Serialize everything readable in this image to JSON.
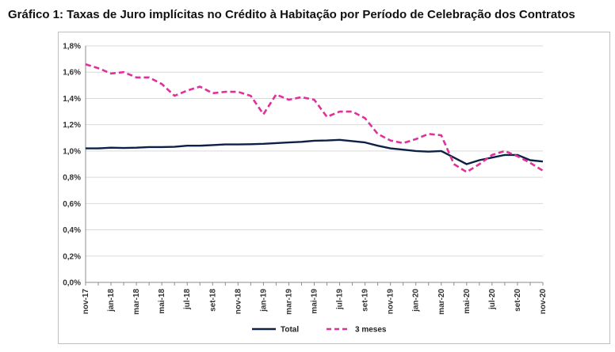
{
  "chart_data": {
    "type": "line",
    "title": "Gráfico 1: Taxas de Juro implícitas no Crédito à Habitação por Período de Celebração dos Contratos",
    "xlabel": "",
    "ylabel": "",
    "ylim": [
      0,
      1.8
    ],
    "y_ticks": [
      "0,0%",
      "0,2%",
      "0,4%",
      "0,6%",
      "0,8%",
      "1,0%",
      "1,2%",
      "1,4%",
      "1,6%",
      "1,8%"
    ],
    "x_ticks": [
      "nov-17",
      "jan-18",
      "mar-18",
      "mai-18",
      "jul-18",
      "set-18",
      "nov-18",
      "jan-19",
      "mar-19",
      "mai-19",
      "jul-19",
      "set-19",
      "nov-19",
      "jan-20",
      "mar-20",
      "mai-20",
      "jul-20",
      "set-20",
      "nov-20"
    ],
    "x": [
      "nov-17",
      "dez-17",
      "jan-18",
      "fev-18",
      "mar-18",
      "abr-18",
      "mai-18",
      "jun-18",
      "jul-18",
      "ago-18",
      "set-18",
      "out-18",
      "nov-18",
      "dez-18",
      "jan-19",
      "fev-19",
      "mar-19",
      "abr-19",
      "mai-19",
      "jun-19",
      "jul-19",
      "ago-19",
      "set-19",
      "out-19",
      "nov-19",
      "dez-19",
      "jan-20",
      "fev-20",
      "mar-20",
      "abr-20",
      "mai-20",
      "jun-20",
      "jul-20",
      "ago-20",
      "set-20",
      "out-20",
      "nov-20"
    ],
    "grid": "horizontal",
    "legend_position": "bottom",
    "series": [
      {
        "name": "Total",
        "color": "#0d2045",
        "style": "solid",
        "values": [
          1.02,
          1.02,
          1.025,
          1.023,
          1.025,
          1.03,
          1.03,
          1.032,
          1.04,
          1.04,
          1.045,
          1.05,
          1.05,
          1.052,
          1.055,
          1.06,
          1.065,
          1.07,
          1.078,
          1.08,
          1.085,
          1.075,
          1.065,
          1.04,
          1.02,
          1.01,
          1.0,
          0.995,
          1.0,
          0.95,
          0.9,
          0.93,
          0.95,
          0.97,
          0.97,
          0.93,
          0.92
        ]
      },
      {
        "name": "3 meses",
        "color": "#e0319b",
        "style": "dashed",
        "values": [
          1.66,
          1.63,
          1.59,
          1.6,
          1.56,
          1.56,
          1.51,
          1.42,
          1.46,
          1.49,
          1.44,
          1.45,
          1.45,
          1.42,
          1.28,
          1.43,
          1.39,
          1.41,
          1.39,
          1.26,
          1.3,
          1.3,
          1.25,
          1.13,
          1.08,
          1.06,
          1.09,
          1.13,
          1.12,
          0.9,
          0.84,
          0.9,
          0.97,
          1.0,
          0.96,
          0.91,
          0.85
        ]
      }
    ]
  }
}
